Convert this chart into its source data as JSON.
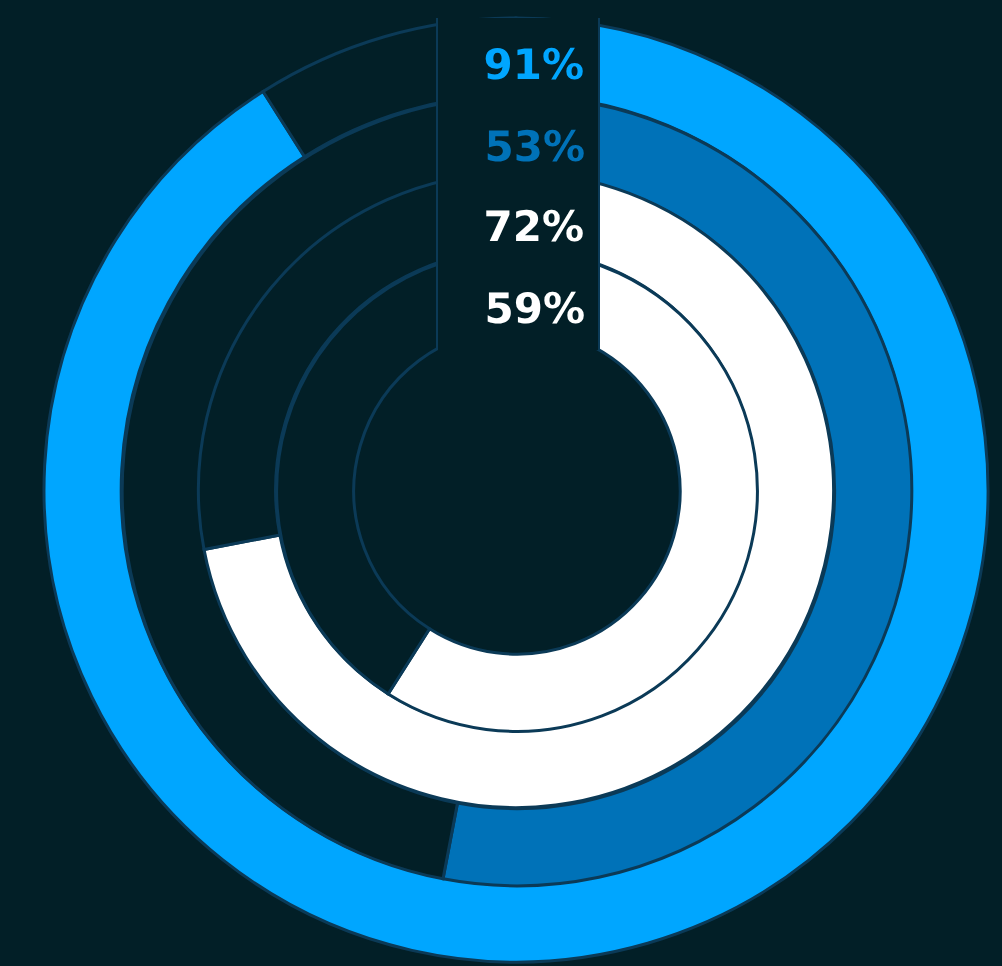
{
  "chart_data": [
    {
      "type": "donut",
      "categories": [
        null,
        null
      ],
      "values": [
        91,
        9
      ],
      "colors": [
        "#00a6ff",
        "#021f27"
      ],
      "value_labels": [
        "91%",
        null
      ]
    },
    {
      "type": "donut",
      "categories": [
        null,
        null
      ],
      "values": [
        53,
        47
      ],
      "colors": [
        "#0072b8",
        "#021f27"
      ],
      "value_labels": [
        "53%",
        null
      ]
    },
    {
      "type": "donut",
      "categories": [
        null,
        null
      ],
      "values": [
        72,
        28
      ],
      "colors": [
        "#ffffff",
        "#021f27"
      ],
      "value_labels": [
        "72%",
        null
      ]
    },
    {
      "type": "donut",
      "categories": [
        null,
        null
      ],
      "values": [
        59,
        41
      ],
      "colors": [
        "#ffffff",
        "#021f27"
      ],
      "value_labels": [
        "59%",
        null
      ]
    }
  ]
}
